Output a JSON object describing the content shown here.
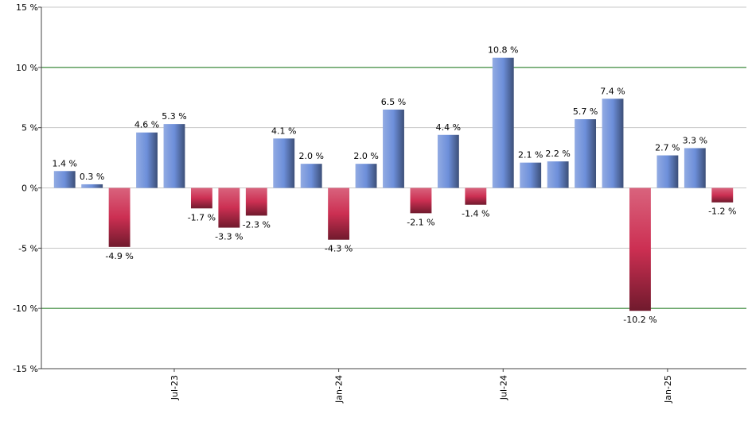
{
  "chart_data": {
    "type": "bar",
    "categories": [
      null,
      null,
      null,
      null,
      "Jul-23",
      null,
      null,
      null,
      null,
      null,
      "Jan-24",
      null,
      null,
      null,
      null,
      null,
      "Jul-24",
      null,
      null,
      null,
      null,
      null,
      "Jan-25",
      null,
      null
    ],
    "values": [
      1.4,
      0.3,
      -4.9,
      4.6,
      5.3,
      -1.7,
      -3.3,
      -2.3,
      4.1,
      2.0,
      -4.3,
      2.0,
      6.5,
      -2.1,
      4.4,
      -1.4,
      10.8,
      2.1,
      2.2,
      5.7,
      7.4,
      -10.2,
      2.7,
      3.3,
      -1.2
    ],
    "value_labels": [
      "1.4 %",
      "0.3 %",
      "-4.9 %",
      "4.6 %",
      "5.3 %",
      "-1.7 %",
      "-3.3 %",
      "-2.3 %",
      "4.1 %",
      "2.0 %",
      "-4.3 %",
      "2.0 %",
      "6.5 %",
      "-2.1 %",
      "4.4 %",
      "-1.4 %",
      "10.8 %",
      "2.1 %",
      "2.2 %",
      "5.7 %",
      "7.4 %",
      "-10.2 %",
      "2.7 %",
      "3.3 %",
      "-1.2 %"
    ],
    "positive_color": "#6d8fda",
    "negative_color": "#cc2f52",
    "ylim": [
      -15,
      15
    ],
    "yticks": [
      {
        "value": -15,
        "label": "-15 %"
      },
      {
        "value": -10,
        "label": "-10 %"
      },
      {
        "value": -5,
        "label": "-5 %"
      },
      {
        "value": 0,
        "label": "0 %"
      },
      {
        "value": 5,
        "label": "5 %"
      },
      {
        "value": 10,
        "label": "10 %"
      },
      {
        "value": 15,
        "label": "15 %"
      }
    ],
    "grid": true,
    "grid_color": "#c8c8c8",
    "reference_lines": {
      "values": [
        -10,
        10
      ],
      "color": "#0a6e0a"
    }
  }
}
